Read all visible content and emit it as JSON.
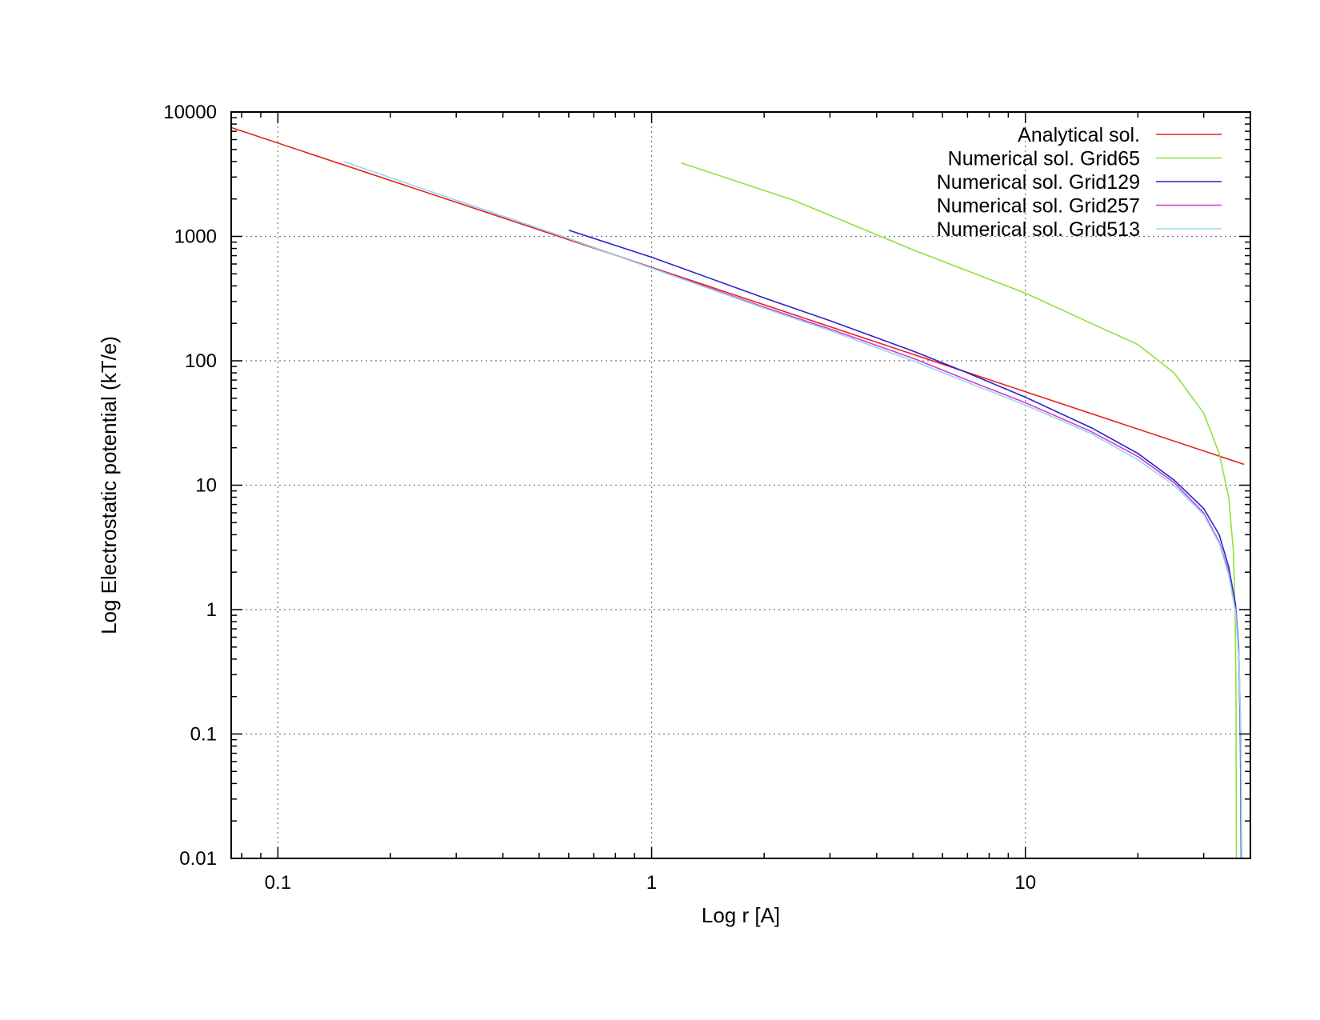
{
  "chart_data": {
    "type": "line",
    "title": "",
    "xlabel": "Log r [A]",
    "ylabel": "Log Electrostatic potential (kT/e)",
    "x_scale": "log",
    "y_scale": "log",
    "xlim": [
      0.075,
      40
    ],
    "ylim": [
      0.01,
      10000
    ],
    "x_ticks": [
      {
        "value": 0.1,
        "label": "0.1"
      },
      {
        "value": 1,
        "label": "1"
      },
      {
        "value": 10,
        "label": "10"
      }
    ],
    "y_ticks": [
      {
        "value": 0.01,
        "label": "0.01"
      },
      {
        "value": 0.1,
        "label": "0.1"
      },
      {
        "value": 1,
        "label": "1"
      },
      {
        "value": 10,
        "label": "10"
      },
      {
        "value": 100,
        "label": "100"
      },
      {
        "value": 1000,
        "label": "1000"
      },
      {
        "value": 10000,
        "label": "10000"
      }
    ],
    "grid": true,
    "legend_position": "top-right",
    "series": [
      {
        "name": "Analytical sol.",
        "color": "#e8211c",
        "points": [
          [
            0.075,
            7500
          ],
          [
            0.3,
            1880
          ],
          [
            1,
            565
          ],
          [
            3,
            188
          ],
          [
            10,
            56.5
          ],
          [
            38.5,
            14.7
          ]
        ]
      },
      {
        "name": "Numerical sol. Grid65",
        "color": "#8fe23c",
        "points": [
          [
            1.2,
            3900
          ],
          [
            2.4,
            1950
          ],
          [
            5,
            780
          ],
          [
            10,
            350
          ],
          [
            15,
            200
          ],
          [
            20,
            135
          ],
          [
            25,
            80
          ],
          [
            30,
            38
          ],
          [
            33,
            18
          ],
          [
            35,
            8
          ],
          [
            36,
            3
          ],
          [
            36.4,
            1
          ],
          [
            36.6,
            0.2
          ],
          [
            36.7,
            0.01
          ]
        ]
      },
      {
        "name": "Numerical sol. Grid129",
        "color": "#2525c8",
        "points": [
          [
            0.6,
            1120
          ],
          [
            1,
            680
          ],
          [
            2,
            320
          ],
          [
            3,
            210
          ],
          [
            5,
            120
          ],
          [
            7,
            80
          ],
          [
            10,
            51
          ],
          [
            15,
            29
          ],
          [
            20,
            18
          ],
          [
            25,
            11
          ],
          [
            30,
            6.5
          ],
          [
            33,
            4
          ],
          [
            35,
            2.2
          ],
          [
            36.5,
            1.1
          ],
          [
            37.2,
            0.5
          ],
          [
            37.6,
            0.1
          ],
          [
            37.8,
            0.01
          ]
        ]
      },
      {
        "name": "Numerical sol. Grid257",
        "color": "#d63ad6",
        "points": [
          [
            0.3,
            1950
          ],
          [
            0.6,
            960
          ],
          [
            1,
            560
          ],
          [
            2,
            270
          ],
          [
            3,
            180
          ],
          [
            5,
            105
          ],
          [
            7,
            70
          ],
          [
            10,
            46
          ],
          [
            15,
            27
          ],
          [
            20,
            17
          ],
          [
            25,
            10.5
          ],
          [
            30,
            6
          ],
          [
            33,
            3.5
          ],
          [
            35,
            2
          ],
          [
            36.5,
            1
          ],
          [
            37.3,
            0.4
          ],
          [
            37.7,
            0.1
          ],
          [
            37.9,
            0.01
          ]
        ]
      },
      {
        "name": "Numerical sol. Grid513",
        "color": "#8fdcec",
        "points": [
          [
            0.15,
            4000
          ],
          [
            0.3,
            1950
          ],
          [
            0.6,
            960
          ],
          [
            1,
            555
          ],
          [
            2,
            265
          ],
          [
            3,
            175
          ],
          [
            5,
            100
          ],
          [
            7,
            67
          ],
          [
            10,
            44
          ],
          [
            15,
            26
          ],
          [
            20,
            16
          ],
          [
            25,
            10
          ],
          [
            30,
            5.8
          ],
          [
            33,
            3.4
          ],
          [
            35,
            1.9
          ],
          [
            36.5,
            0.95
          ],
          [
            37.3,
            0.4
          ],
          [
            37.7,
            0.1
          ],
          [
            37.9,
            0.01
          ]
        ]
      }
    ]
  }
}
